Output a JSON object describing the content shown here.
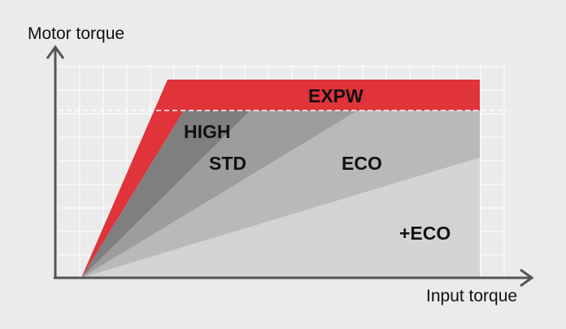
{
  "axes": {
    "y_label": "Motor torque",
    "x_label": "Input torque"
  },
  "modes": [
    {
      "key": "expw",
      "label": "EXPW",
      "color": "#e0333a"
    },
    {
      "key": "high",
      "label": "HIGH",
      "color": "#7f7f7f"
    },
    {
      "key": "std",
      "label": "STD",
      "color": "#9a9a9a"
    },
    {
      "key": "eco",
      "label": "ECO",
      "color": "#b4b4b4"
    },
    {
      "key": "plus_eco",
      "label": "+ECO",
      "color": "#cfcfcf"
    }
  ],
  "colors": {
    "background": "#ebebeb",
    "grid": "#ffffff",
    "axis": "#555555",
    "limit_line": "#ffffff",
    "text": "#111111"
  },
  "limit_line_style": "dashed"
}
